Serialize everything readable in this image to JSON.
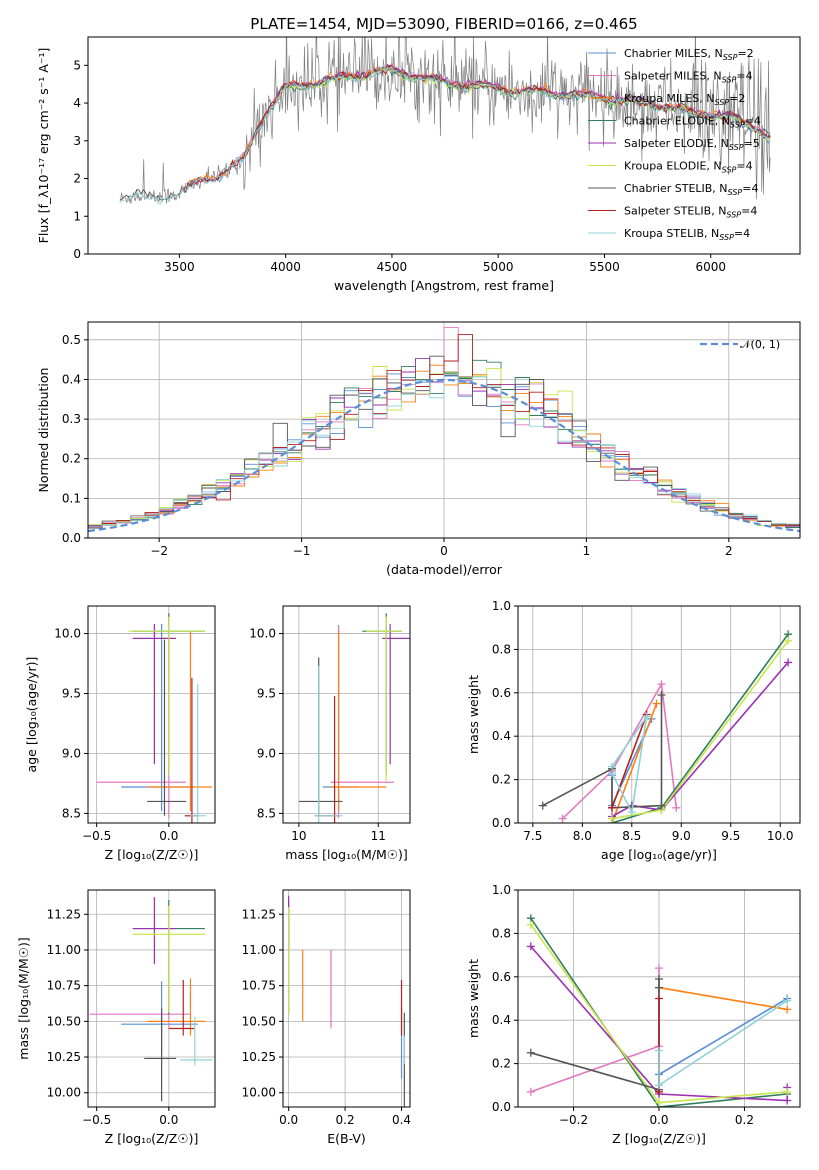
{
  "colors": {
    "chabrier_miles": "#5a8fd8",
    "salpeter_miles": "#e377c2",
    "kroupa_miles": "#ff7f0e",
    "chabrier_elodie": "#2f7f5f",
    "salpeter_elodie": "#9b30b0",
    "kroupa_elodie": "#c8e64c",
    "chabrier_stelib": "#555555",
    "salpeter_stelib": "#b22222",
    "kroupa_stelib": "#8fd1d8",
    "data": "#7f7f7f"
  },
  "chart_data": [
    {
      "id": "spectrum",
      "type": "line",
      "title": "PLATE=1454, MJD=53090, FIBERID=0166, z=0.465",
      "xlabel": "wavelength [Angstrom, rest frame]",
      "ylabel": "Flux [f_λ10⁻¹⁷ erg cm⁻² s⁻¹ A⁻¹]",
      "xlim": [
        3070,
        6420
      ],
      "ylim": [
        0,
        5.75
      ],
      "xticks": [
        "3500",
        "4000",
        "4500",
        "5000",
        "5500",
        "6000"
      ],
      "yticks": [
        "0",
        "1",
        "2",
        "3",
        "4",
        "5"
      ],
      "legend_position": "top-right",
      "legend": [
        {
          "key": "chabrier_miles",
          "label": "Chabrier MILES, N",
          "sub": "SSP",
          "suffix": "=2"
        },
        {
          "key": "salpeter_miles",
          "label": "Salpeter MILES, N",
          "sub": "SSP",
          "suffix": "=4"
        },
        {
          "key": "kroupa_miles",
          "label": "Kroupa MILES, N",
          "sub": "SSP",
          "suffix": "=2"
        },
        {
          "key": "chabrier_elodie",
          "label": "Chabrier ELODIE, N",
          "sub": "SSP",
          "suffix": "=4"
        },
        {
          "key": "salpeter_elodie",
          "label": "Salpeter ELODIE, N",
          "sub": "SSP",
          "suffix": "=5"
        },
        {
          "key": "kroupa_elodie",
          "label": "Kroupa ELODIE, N",
          "sub": "SSP",
          "suffix": "=4"
        },
        {
          "key": "chabrier_stelib",
          "label": "Chabrier STELIB, N",
          "sub": "SSP",
          "suffix": "=4"
        },
        {
          "key": "salpeter_stelib",
          "label": "Salpeter STELIB, N",
          "sub": "SSP",
          "suffix": "=4"
        },
        {
          "key": "kroupa_stelib",
          "label": "Kroupa STELIB, N",
          "sub": "SSP",
          "suffix": "=4"
        }
      ],
      "continuum_points": [
        [
          3220,
          1.45
        ],
        [
          3300,
          1.55
        ],
        [
          3400,
          1.5
        ],
        [
          3500,
          1.6
        ],
        [
          3600,
          1.95
        ],
        [
          3700,
          2.1
        ],
        [
          3800,
          2.5
        ],
        [
          3900,
          3.7
        ],
        [
          4000,
          4.4
        ],
        [
          4100,
          4.5
        ],
        [
          4200,
          4.6
        ],
        [
          4300,
          4.7
        ],
        [
          4400,
          4.8
        ],
        [
          4500,
          4.85
        ],
        [
          4600,
          4.75
        ],
        [
          4700,
          4.6
        ],
        [
          4800,
          4.5
        ],
        [
          4900,
          4.45
        ],
        [
          5000,
          4.4
        ],
        [
          5100,
          4.3
        ],
        [
          5200,
          4.3
        ],
        [
          5300,
          4.25
        ],
        [
          5400,
          4.2
        ],
        [
          5500,
          4.15
        ],
        [
          5600,
          4.05
        ],
        [
          5700,
          4.0
        ],
        [
          5800,
          3.9
        ],
        [
          5900,
          3.75
        ],
        [
          6000,
          3.7
        ],
        [
          6100,
          3.6
        ],
        [
          6200,
          3.4
        ],
        [
          6280,
          3.1
        ]
      ]
    },
    {
      "id": "residuals",
      "type": "histogram",
      "xlabel": "(data-model)/error",
      "ylabel": "Normed distribution",
      "xlim": [
        -2.5,
        2.5
      ],
      "ylim": [
        0,
        0.545
      ],
      "xticks": [
        "−2",
        "−1",
        "0",
        "1",
        "2"
      ],
      "yticks": [
        "0.0",
        "0.1",
        "0.2",
        "0.3",
        "0.4",
        "0.5"
      ],
      "legend_position": "top-right",
      "reference_label": "𝒩(0, 1)",
      "reference_color": "#5a8fd8",
      "bin_width": 0.1
    },
    {
      "id": "age_z",
      "type": "errorbar",
      "xlabel": "Z [log₁₀(Z/Z☉)]",
      "ylabel": "age  [log₁₀(age/yr)]",
      "xlim": [
        -0.56,
        0.32
      ],
      "ylim": [
        8.42,
        10.23
      ],
      "xticks": [
        "−0.5",
        "0.0"
      ],
      "yticks": [
        "8.5",
        "9.0",
        "9.5",
        "10.0"
      ],
      "points": [
        {
          "key": "chabrier_miles",
          "x": -0.05,
          "xerr": [
            0.28,
            0.2
          ],
          "y": 8.72,
          "yerr": [
            0.2,
            1.36
          ]
        },
        {
          "key": "salpeter_miles",
          "x": 0.0,
          "xerr": [
            0.5,
            0.12
          ],
          "y": 8.76,
          "yerr": [
            0.3,
            1.2
          ]
        },
        {
          "key": "kroupa_miles",
          "x": 0.15,
          "xerr": [
            0.3,
            0.15
          ],
          "y": 8.72,
          "yerr": [
            0.2,
            1.3
          ]
        },
        {
          "key": "chabrier_elodie",
          "x": 0.0,
          "xerr": [
            0.25,
            0.25
          ],
          "y": 10.02,
          "yerr": [
            1.2,
            0.15
          ]
        },
        {
          "key": "salpeter_elodie",
          "x": -0.1,
          "xerr": [
            0.15,
            0.15
          ],
          "y": 9.96,
          "yerr": [
            1.05,
            0.12
          ]
        },
        {
          "key": "kroupa_elodie",
          "x": 0.0,
          "xerr": [
            0.28,
            0.25
          ],
          "y": 10.02,
          "yerr": [
            1.2,
            0.12
          ]
        },
        {
          "key": "chabrier_stelib",
          "x": -0.03,
          "xerr": [
            0.12,
            0.15
          ],
          "y": 8.6,
          "yerr": [
            0.12,
            1.35
          ]
        },
        {
          "key": "salpeter_stelib",
          "x": 0.16,
          "xerr": [
            0.05,
            0.04
          ],
          "y": 8.48,
          "yerr": [
            0.06,
            1.15
          ]
        },
        {
          "key": "kroupa_stelib",
          "x": 0.2,
          "xerr": [
            0.05,
            0.06
          ],
          "y": 8.48,
          "yerr": [
            0.06,
            1.1
          ]
        }
      ]
    },
    {
      "id": "age_mass",
      "type": "errorbar",
      "xlabel": "mass [log₁₀(M/M☉)]",
      "ylabel": "",
      "xlim": [
        9.8,
        11.4
      ],
      "ylim": [
        8.42,
        10.23
      ],
      "xticks": [
        "10",
        "11"
      ],
      "yticks": [
        "8.5",
        "9.0",
        "9.5",
        "10.0"
      ],
      "points": [
        {
          "key": "chabrier_miles",
          "x": 10.5,
          "xerr": [
            0.2,
            0.25
          ],
          "y": 8.72,
          "yerr": [
            0.2,
            1.35
          ]
        },
        {
          "key": "salpeter_miles",
          "x": 10.5,
          "xerr": [
            0.1,
            0.7
          ],
          "y": 8.76,
          "yerr": [
            0.3,
            1.3
          ]
        },
        {
          "key": "kroupa_miles",
          "x": 10.5,
          "xerr": [
            0.1,
            0.6
          ],
          "y": 8.72,
          "yerr": [
            0.2,
            1.3
          ]
        },
        {
          "key": "chabrier_elodie",
          "x": 11.1,
          "xerr": [
            0.3,
            0.2
          ],
          "y": 10.02,
          "yerr": [
            1.2,
            0.15
          ]
        },
        {
          "key": "salpeter_elodie",
          "x": 11.15,
          "xerr": [
            0.1,
            0.25
          ],
          "y": 9.96,
          "yerr": [
            1.05,
            0.12
          ]
        },
        {
          "key": "kroupa_elodie",
          "x": 11.1,
          "xerr": [
            0.25,
            0.2
          ],
          "y": 10.02,
          "yerr": [
            1.25,
            0.12
          ]
        },
        {
          "key": "chabrier_stelib",
          "x": 10.25,
          "xerr": [
            0.25,
            0.3
          ],
          "y": 8.6,
          "yerr": [
            0.12,
            1.2
          ]
        },
        {
          "key": "salpeter_stelib",
          "x": 10.45,
          "xerr": [
            0.25,
            0.05
          ],
          "y": 8.48,
          "yerr": [
            0.06,
            1.0
          ]
        },
        {
          "key": "kroupa_stelib",
          "x": 10.25,
          "xerr": [
            0.05,
            0.3
          ],
          "y": 8.48,
          "yerr": [
            0.06,
            1.25
          ]
        }
      ]
    },
    {
      "id": "mass_weight_age",
      "type": "line",
      "xlabel": "age  [log₁₀(age/yr)]",
      "ylabel": "mass weight",
      "xlim": [
        7.35,
        10.2
      ],
      "ylim": [
        0,
        1.0
      ],
      "xticks": [
        "7.5",
        "8.0",
        "8.5",
        "9.0",
        "9.5",
        "10.0"
      ],
      "yticks": [
        "0.0",
        "0.2",
        "0.4",
        "0.6",
        "0.8",
        "1.0"
      ],
      "series": [
        {
          "key": "chabrier_miles",
          "x": [
            8.3,
            8.3,
            8.7
          ],
          "y": [
            0.22,
            0.08,
            0.48
          ]
        },
        {
          "key": "salpeter_miles",
          "x": [
            7.8,
            8.3,
            8.8,
            8.95
          ],
          "y": [
            0.02,
            0.24,
            0.64,
            0.07
          ]
        },
        {
          "key": "kroupa_miles",
          "x": [
            8.3,
            8.75
          ],
          "y": [
            0.0,
            0.55
          ]
        },
        {
          "key": "chabrier_elodie",
          "x": [
            8.3,
            8.8,
            10.08
          ],
          "y": [
            0.0,
            0.07,
            0.87
          ]
        },
        {
          "key": "salpeter_elodie",
          "x": [
            8.3,
            8.5,
            8.8,
            10.08
          ],
          "y": [
            0.03,
            0.08,
            0.06,
            0.74
          ]
        },
        {
          "key": "kroupa_elodie",
          "x": [
            8.3,
            8.8,
            10.08
          ],
          "y": [
            0.02,
            0.06,
            0.84
          ]
        },
        {
          "key": "chabrier_stelib",
          "x": [
            7.6,
            8.3,
            8.3,
            8.8,
            8.8
          ],
          "y": [
            0.08,
            0.25,
            0.07,
            0.08,
            0.59
          ]
        },
        {
          "key": "salpeter_stelib",
          "x": [
            8.3,
            8.65
          ],
          "y": [
            0.07,
            0.5
          ]
        },
        {
          "key": "kroupa_stelib",
          "x": [
            8.3,
            8.65,
            8.5,
            8.3
          ],
          "y": [
            0.26,
            0.49,
            0.05,
            0.23
          ]
        }
      ]
    },
    {
      "id": "mass_z",
      "type": "errorbar",
      "xlabel": "Z [log₁₀(Z/Z☉)]",
      "ylabel": "mass [log₁₀(M/M☉)]",
      "xlim": [
        -0.56,
        0.32
      ],
      "ylim": [
        9.9,
        11.42
      ],
      "xticks": [
        "−0.5",
        "0.0"
      ],
      "yticks": [
        "10.00",
        "10.25",
        "10.50",
        "10.75",
        "11.00",
        "11.25"
      ],
      "points": [
        {
          "key": "chabrier_miles",
          "x": -0.05,
          "xerr": [
            0.28,
            0.25
          ],
          "y": 10.48,
          "yerr": [
            0.2,
            0.3
          ]
        },
        {
          "key": "salpeter_miles",
          "x": 0.0,
          "xerr": [
            0.55,
            0.15
          ],
          "y": 10.55,
          "yerr": [
            0.1,
            0.4
          ]
        },
        {
          "key": "kroupa_miles",
          "x": 0.15,
          "xerr": [
            0.3,
            0.1
          ],
          "y": 10.5,
          "yerr": [
            0.1,
            0.3
          ]
        },
        {
          "key": "chabrier_elodie",
          "x": 0.0,
          "xerr": [
            0.25,
            0.25
          ],
          "y": 11.15,
          "yerr": [
            0.6,
            0.2
          ]
        },
        {
          "key": "salpeter_elodie",
          "x": -0.1,
          "xerr": [
            0.15,
            0.15
          ],
          "y": 11.15,
          "yerr": [
            0.25,
            0.22
          ]
        },
        {
          "key": "kroupa_elodie",
          "x": 0.0,
          "xerr": [
            0.25,
            0.25
          ],
          "y": 11.11,
          "yerr": [
            0.55,
            0.2
          ]
        },
        {
          "key": "chabrier_stelib",
          "x": -0.05,
          "xerr": [
            0.12,
            0.1
          ],
          "y": 10.24,
          "yerr": [
            0.3,
            0.35
          ]
        },
        {
          "key": "salpeter_stelib",
          "x": 0.1,
          "xerr": [
            0.1,
            0.08
          ],
          "y": 10.45,
          "yerr": [
            0.05,
            0.34
          ]
        },
        {
          "key": "kroupa_stelib",
          "x": 0.18,
          "xerr": [
            0.1,
            0.12
          ],
          "y": 10.23,
          "yerr": [
            0.04,
            0.3
          ]
        }
      ]
    },
    {
      "id": "mass_ebv",
      "type": "errorbar",
      "xlabel": "E(B-V)",
      "ylabel": "",
      "xlim": [
        -0.02,
        0.43
      ],
      "ylim": [
        9.9,
        11.42
      ],
      "xticks": [
        "0.0",
        "0.2",
        "0.4"
      ],
      "yticks": [
        "10.00",
        "10.25",
        "10.50",
        "10.75",
        "11.00",
        "11.25"
      ],
      "points": [
        {
          "key": "chabrier_miles",
          "x": 0.4,
          "xerr": [
            0,
            0
          ],
          "y": 10.4,
          "yerr": [
            0.3,
            0.2
          ]
        },
        {
          "key": "salpeter_miles",
          "x": 0.15,
          "xerr": [
            0,
            0
          ],
          "y": 10.7,
          "yerr": [
            0.25,
            0.3
          ]
        },
        {
          "key": "kroupa_miles",
          "x": 0.05,
          "xerr": [
            0,
            0
          ],
          "y": 10.8,
          "yerr": [
            0.3,
            0.2
          ]
        },
        {
          "key": "chabrier_elodie",
          "x": 0.0,
          "xerr": [
            0,
            0
          ],
          "y": 11.15,
          "yerr": [
            0.6,
            0.2
          ]
        },
        {
          "key": "salpeter_elodie",
          "x": 0.0,
          "xerr": [
            0,
            0
          ],
          "y": 11.3,
          "yerr": [
            0.3,
            0.08
          ]
        },
        {
          "key": "kroupa_elodie",
          "x": 0.0,
          "xerr": [
            0,
            0
          ],
          "y": 11.0,
          "yerr": [
            0.45,
            0.3
          ]
        },
        {
          "key": "chabrier_stelib",
          "x": 0.41,
          "xerr": [
            0,
            0
          ],
          "y": 10.2,
          "yerr": [
            0.3,
            0.36
          ]
        },
        {
          "key": "salpeter_stelib",
          "x": 0.4,
          "xerr": [
            0,
            0
          ],
          "y": 10.45,
          "yerr": [
            0.05,
            0.34
          ]
        },
        {
          "key": "kroupa_stelib",
          "x": 0.41,
          "xerr": [
            0,
            0
          ],
          "y": 10.25,
          "yerr": [
            0.05,
            0.15
          ]
        }
      ]
    },
    {
      "id": "mass_weight_z",
      "type": "line",
      "xlabel": "Z [log₁₀(Z/Z☉)]",
      "ylabel": "mass weight",
      "xlim": [
        -0.33,
        0.33
      ],
      "ylim": [
        0,
        1.0
      ],
      "xticks": [
        "−0.2",
        "0.0",
        "0.2"
      ],
      "yticks": [
        "0.0",
        "0.2",
        "0.4",
        "0.6",
        "0.8",
        "1.0"
      ],
      "series": [
        {
          "key": "chabrier_miles",
          "x": [
            0.0,
            0.0,
            0.3
          ],
          "y": [
            0.08,
            0.15,
            0.5
          ]
        },
        {
          "key": "salpeter_miles",
          "x": [
            -0.3,
            0.0,
            0.0,
            0.0
          ],
          "y": [
            0.07,
            0.28,
            0.55,
            0.64
          ]
        },
        {
          "key": "kroupa_miles",
          "x": [
            0.0,
            0.3
          ],
          "y": [
            0.55,
            0.45
          ]
        },
        {
          "key": "chabrier_elodie",
          "x": [
            -0.3,
            0.0,
            0.3
          ],
          "y": [
            0.87,
            0.0,
            0.06
          ]
        },
        {
          "key": "salpeter_elodie",
          "x": [
            -0.3,
            0.0,
            0.3,
            0.3
          ],
          "y": [
            0.74,
            0.06,
            0.03,
            0.09
          ]
        },
        {
          "key": "kroupa_elodie",
          "x": [
            -0.3,
            0.0,
            0.3
          ],
          "y": [
            0.84,
            0.02,
            0.07
          ]
        },
        {
          "key": "chabrier_stelib",
          "x": [
            -0.3,
            0.0,
            0.0,
            0.0
          ],
          "y": [
            0.25,
            0.08,
            0.55,
            0.59
          ]
        },
        {
          "key": "salpeter_stelib",
          "x": [
            0.0,
            0.0
          ],
          "y": [
            0.07,
            0.5
          ]
        },
        {
          "key": "kroupa_stelib",
          "x": [
            0.0,
            0.0,
            0.3
          ],
          "y": [
            0.26,
            0.1,
            0.49
          ]
        }
      ]
    }
  ]
}
